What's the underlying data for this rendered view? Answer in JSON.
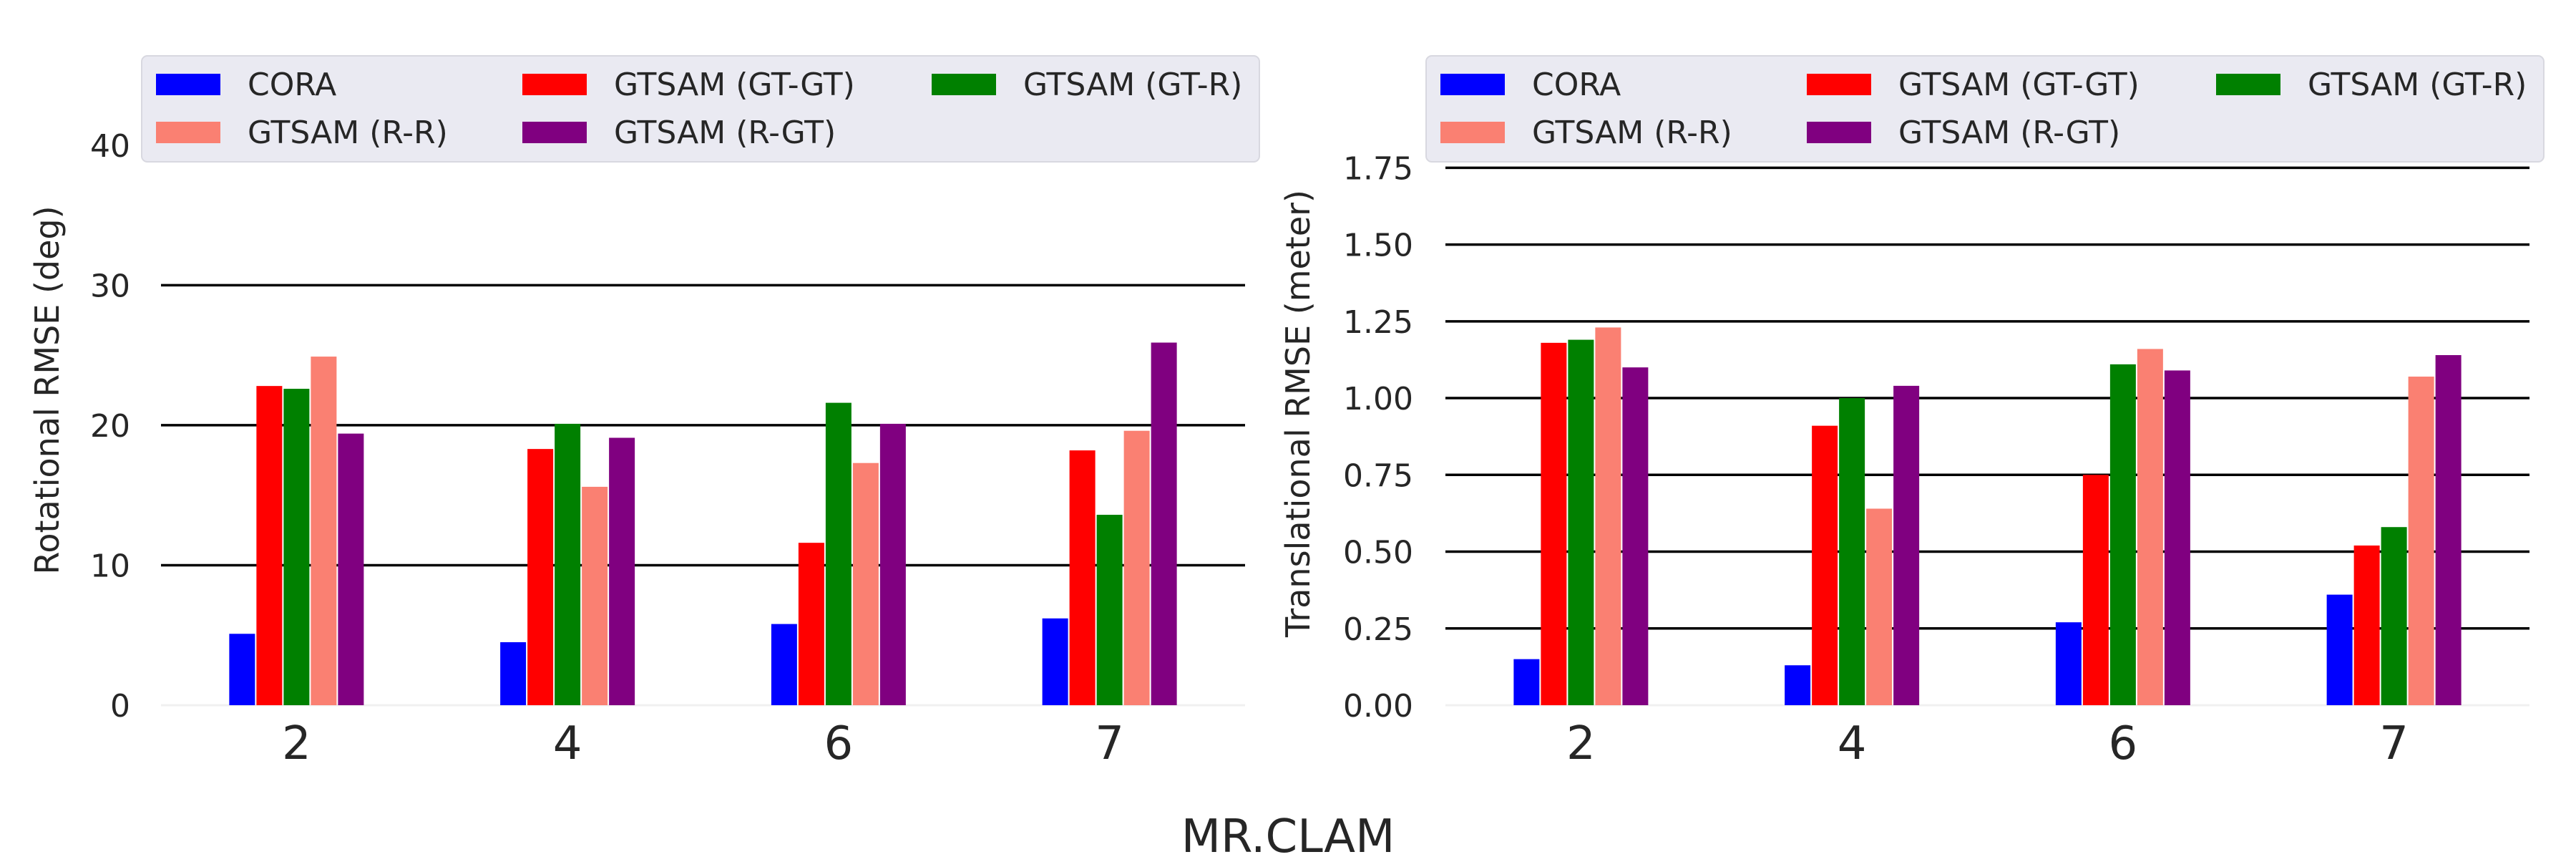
{
  "figure": {
    "xlabel": "MR.CLAM"
  },
  "chart_data": [
    {
      "type": "bar",
      "categories": [
        "2",
        "4",
        "6",
        "7"
      ],
      "ylabel": "Rotational RMSE (deg)",
      "ylim": [
        0,
        45
      ],
      "yticks": [
        0,
        10,
        20,
        30,
        40
      ],
      "ytick_labels": [
        "0",
        "10",
        "20",
        "30",
        "40"
      ],
      "grid": true,
      "legend_placement": "top",
      "series": [
        {
          "name": "CORA",
          "color": "#0000ff",
          "values": [
            5.1,
            4.5,
            5.8,
            6.2
          ]
        },
        {
          "name": "GTSAM (GT-GT)",
          "color": "#ff0000",
          "values": [
            22.8,
            18.3,
            11.6,
            18.2
          ]
        },
        {
          "name": "GTSAM (GT-R)",
          "color": "#008000",
          "values": [
            22.6,
            20.1,
            21.6,
            13.6
          ]
        },
        {
          "name": "GTSAM (R-R)",
          "color": "#fa8072",
          "values": [
            24.9,
            15.6,
            17.3,
            19.6
          ]
        },
        {
          "name": "GTSAM (R-GT)",
          "color": "#800080",
          "values": [
            19.4,
            19.1,
            20.1,
            25.9
          ]
        }
      ]
    },
    {
      "type": "bar",
      "categories": [
        "2",
        "4",
        "6",
        "7"
      ],
      "ylabel": "Translational RMSE (meter)",
      "ylim": [
        0,
        1.9
      ],
      "yticks": [
        0,
        0.25,
        0.5,
        0.75,
        1.0,
        1.25,
        1.5,
        1.75
      ],
      "ytick_labels": [
        "0.00",
        "0.25",
        "0.50",
        "0.75",
        "1.00",
        "1.25",
        "1.50",
        "1.75"
      ],
      "grid": true,
      "legend_placement": "top",
      "series": [
        {
          "name": "CORA",
          "color": "#0000ff",
          "values": [
            0.15,
            0.13,
            0.27,
            0.36
          ]
        },
        {
          "name": "GTSAM (GT-GT)",
          "color": "#ff0000",
          "values": [
            1.18,
            0.91,
            0.75,
            0.52
          ]
        },
        {
          "name": "GTSAM (GT-R)",
          "color": "#008000",
          "values": [
            1.19,
            1.0,
            1.11,
            0.58
          ]
        },
        {
          "name": "GTSAM (R-R)",
          "color": "#fa8072",
          "values": [
            1.23,
            0.64,
            1.16,
            1.07
          ]
        },
        {
          "name": "GTSAM (R-GT)",
          "color": "#800080",
          "values": [
            1.1,
            1.04,
            1.09,
            1.14
          ]
        }
      ]
    }
  ]
}
